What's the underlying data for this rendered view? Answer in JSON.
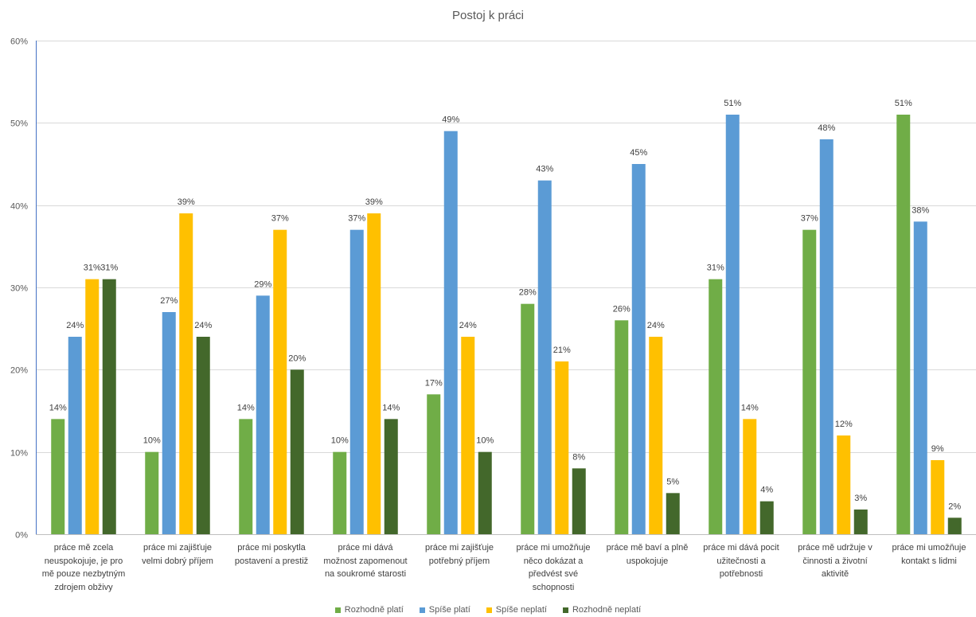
{
  "chart_data": {
    "type": "bar",
    "title": "Postoj k práci",
    "categories": [
      "práce mě zcela neuspokojuje, je pro mě pouze nezbytným zdrojem obživy",
      "práce mi zajišťuje velmi dobrý příjem",
      "práce mi poskytla postavení a prestiž",
      "práce mi dává možnost zapomenout na soukromé starosti",
      "práce mi zajišťuje potřebný příjem",
      "práce mi umožňuje něco dokázat a předvést své schopnosti",
      "práce mě baví a plně uspokojuje",
      "práce mi dává pocit užitečnosti a potřebnosti",
      "práce mě udržuje v činnosti a životní aktivitě",
      "práce mi umožňuje kontakt s lidmi"
    ],
    "series": [
      {
        "name": "Rozhodně platí",
        "color": "#70AD47",
        "values": [
          14,
          10,
          14,
          10,
          17,
          28,
          26,
          31,
          37,
          51
        ]
      },
      {
        "name": "Spíše platí",
        "color": "#5B9BD5",
        "values": [
          24,
          27,
          29,
          37,
          49,
          43,
          45,
          51,
          48,
          38
        ]
      },
      {
        "name": "Spíše neplatí",
        "color": "#FFC000",
        "values": [
          31,
          39,
          37,
          39,
          24,
          21,
          24,
          14,
          12,
          9
        ]
      },
      {
        "name": "Rozhodně neplatí",
        "color": "#43682B",
        "values": [
          31,
          24,
          20,
          14,
          10,
          8,
          5,
          4,
          3,
          2
        ]
      }
    ],
    "unit": "%",
    "ylim": [
      0,
      60
    ],
    "yticks": [
      0,
      10,
      20,
      30,
      40,
      50,
      60
    ],
    "grid": true,
    "legend": "bottom"
  }
}
